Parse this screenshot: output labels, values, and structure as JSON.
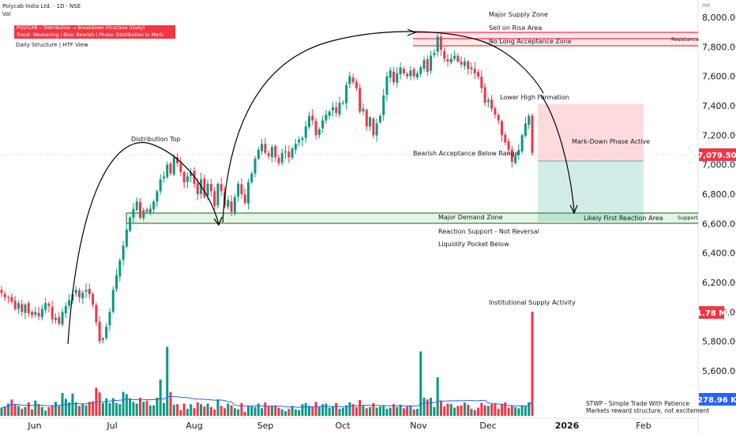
{
  "title": "Polycab India Ltd. · 1D · NSE",
  "vol_label": "Vol",
  "study": {
    "line1": "POLYCAB – Distribution → Breakdown Structure (Daily)",
    "line2": "Trend: Weakening | Bias: Bearish | Phase: Distribution to Mark-Down",
    "sub": "Daily Structure | HTF View"
  },
  "footer": {
    "line1": "STWP - Simple Trade With Patience",
    "line2": "Markets reward structure, not excitement"
  },
  "colors": {
    "up": "#089981",
    "down": "#f23645",
    "volume_ma": "#2962ff",
    "supply_zone": "#f23645",
    "demand_zone": "#089981"
  },
  "chart_data": {
    "type": "candlestick",
    "currency": "INR",
    "x_labels": [
      "Jun",
      "Jul",
      "Aug",
      "Sep",
      "Oct",
      "Nov",
      "Dec",
      "2026",
      "Feb"
    ],
    "y_ticks": [
      5600,
      5800,
      6000,
      6200,
      6400,
      6600,
      6800,
      7000,
      7200,
      7400,
      7600,
      7800,
      8000
    ],
    "y_tick_labels": [
      "5,600.00",
      "5,800.00",
      "6,000.00",
      "6,200.00",
      "6,400.00",
      "6,600.00",
      "6,800.00",
      "7,000.00",
      "7,200.00",
      "7,400.00",
      "7,600.00",
      "7,800.00",
      "8,000.00"
    ],
    "ylim": [
      5400,
      8120
    ],
    "last_price": "7,079.50",
    "last_volume": "1.78 M",
    "volume_ma_value": "278.96 K",
    "price_path": [
      6130,
      6100,
      6100,
      6070,
      6020,
      6060,
      6000,
      6050,
      5990,
      5980,
      6000,
      5970,
      6020,
      6060,
      6040,
      5950,
      5960,
      5920,
      6000,
      6040,
      6080,
      6120,
      6150,
      6100,
      6130,
      6150,
      6120,
      6050,
      5930,
      5800,
      5820,
      5900,
      6000,
      6150,
      6250,
      6350,
      6450,
      6560,
      6640,
      6700,
      6750,
      6640,
      6690,
      6680,
      6700,
      6750,
      6820,
      6900,
      6920,
      7000,
      6940,
      7050,
      7010,
      6950,
      6880,
      6920,
      6950,
      6870,
      6800,
      6900,
      6780,
      6870,
      6820,
      6720,
      6870,
      6820,
      6720,
      6760,
      6680,
      6780,
      6870,
      6800,
      6740,
      6880,
      6940,
      7040,
      7100,
      7140,
      7080,
      7060,
      7120,
      7050,
      7010,
      7080,
      7090,
      7050,
      7110,
      7140,
      7170,
      7180,
      7260,
      7330,
      7300,
      7200,
      7240,
      7300,
      7340,
      7360,
      7390,
      7350,
      7420,
      7420,
      7540,
      7600,
      7560,
      7520,
      7360,
      7380,
      7260,
      7320,
      7200,
      7280,
      7330,
      7470,
      7600,
      7640,
      7560,
      7620,
      7660,
      7620,
      7600,
      7640,
      7600,
      7620,
      7660,
      7710,
      7630,
      7740,
      7760,
      7870,
      7780,
      7720,
      7700,
      7720,
      7740,
      7700,
      7680,
      7700,
      7650,
      7660,
      7620,
      7600,
      7520,
      7420,
      7440,
      7380,
      7340,
      7300,
      7200,
      7150,
      7100,
      7020,
      7060,
      7100,
      7200,
      7280,
      7330,
      7079.5
    ],
    "series": [
      {
        "name": "Volume",
        "values_k": [
          140,
          160,
          210,
          280,
          190,
          170,
          120,
          150,
          230,
          110,
          260,
          200,
          150,
          90,
          150,
          180,
          240,
          170,
          390,
          290,
          230,
          380,
          230,
          170,
          200,
          180,
          240,
          250,
          480,
          400,
          220,
          300,
          220,
          300,
          220,
          200,
          410,
          370,
          300,
          240,
          210,
          310,
          240,
          260,
          180,
          180,
          310,
          620,
          220,
          1180,
          410,
          190,
          200,
          100,
          210,
          120,
          200,
          130,
          230,
          200,
          160,
          210,
          150,
          110,
          280,
          170,
          130,
          210,
          180,
          130,
          110,
          220,
          70,
          170,
          160,
          150,
          210,
          130,
          230,
          160,
          170,
          180,
          140,
          110,
          80,
          120,
          170,
          110,
          100,
          200,
          220,
          170,
          150,
          240,
          150,
          200,
          210,
          140,
          160,
          220,
          120,
          140,
          180,
          230,
          200,
          150,
          270,
          170,
          130,
          150,
          220,
          140,
          160,
          180,
          120,
          140,
          200,
          150,
          190,
          130,
          160,
          170,
          110,
          120,
          1100,
          310,
          280,
          310,
          150,
          660,
          260,
          160,
          210,
          200,
          140,
          170,
          180,
          230,
          190,
          120,
          100,
          140,
          220,
          180,
          170,
          200,
          200,
          120,
          200,
          230,
          140,
          170,
          150,
          130,
          180,
          160,
          230,
          1780
        ]
      }
    ],
    "annotations": [
      "Major Supply Zone",
      "Sell on Rise Area",
      "No Long Acceptance Zone",
      "Resistance",
      "Lower High Formation",
      "Mark-Down Phase Active",
      "Bearish Acceptance Below Range",
      "Distribution Top",
      "Major Demand Zone",
      "Reaction Support - Not Reversal",
      "Liquidity Pocket Below",
      "Support",
      "Likely First Reaction Area",
      "Institutional Supply Activity"
    ],
    "axis_unit": "INR"
  }
}
